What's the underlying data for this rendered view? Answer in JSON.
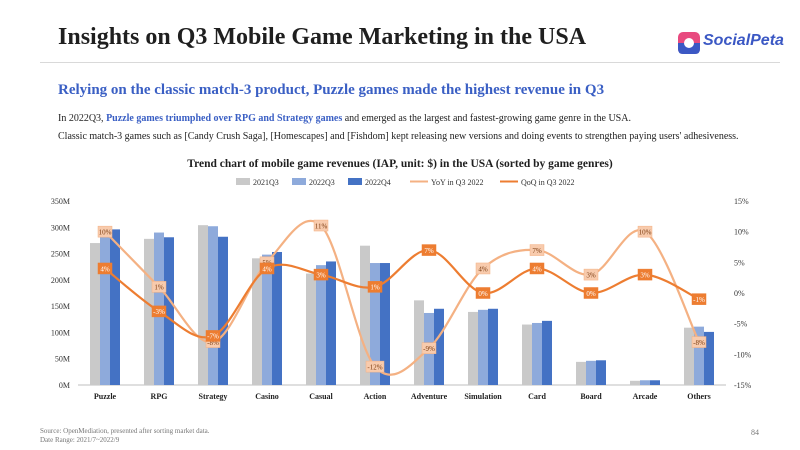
{
  "header": {
    "title": "Insights on Q3 Mobile Game Marketing in the USA",
    "logo_text": "SocialPeta"
  },
  "headline": "Relying on the classic match-3 product, Puzzle games made the highest revenue in Q3",
  "paragraph1": {
    "before": "In 2022Q3, ",
    "highlight": "Puzzle games triumphed over RPG and Strategy games",
    "after": " and emerged as the largest and fastest-growing game genre in the USA."
  },
  "paragraph2": "Classic match-3 games such as [Candy Crush Saga], [Homescapes] and [Fishdom] kept releasing new versions and doing events to strengthen paying users' adhesiveness.",
  "footer": {
    "source": "Source: OpenMediation, presented after sorting market data.",
    "date_range": "Date Range: 2021/7~2022/9",
    "page_number": "84"
  },
  "colors": {
    "bar_2021q3": "#c9c9c9",
    "bar_2022q3": "#8eaadb",
    "bar_2022q4": "#4472c4",
    "yoy_line": "#f4b183",
    "qoq_line": "#ed7d31",
    "yoy_label_bg": "#f8cbad",
    "qoq_label_bg": "#ed7d31"
  },
  "chart_data": {
    "type": "bar",
    "title": "Trend chart of mobile game revenues (IAP, unit: $) in the USA (sorted by game genres)",
    "categories": [
      "Puzzle",
      "RPG",
      "Strategy",
      "Casino",
      "Casual",
      "Action",
      "Adventure",
      "Simulation",
      "Card",
      "Board",
      "Arcade",
      "Others"
    ],
    "series": [
      {
        "name": "2021Q3",
        "type": "bar",
        "axis": "left",
        "values": [
          270,
          278,
          304,
          241,
          212,
          265,
          161,
          139,
          115,
          44,
          8,
          109
        ]
      },
      {
        "name": "2022Q3",
        "type": "bar",
        "axis": "left",
        "values": [
          285,
          290,
          302,
          248,
          228,
          232,
          137,
          143,
          118,
          46,
          9,
          111
        ]
      },
      {
        "name": "2022Q4",
        "type": "bar",
        "axis": "left",
        "values": [
          296,
          281,
          282,
          253,
          235,
          232,
          145,
          145,
          122,
          47,
          9,
          101
        ]
      },
      {
        "name": "YoY in Q3 2022",
        "type": "line",
        "axis": "right",
        "values": [
          10,
          1,
          -8,
          5,
          11,
          -12,
          -9,
          4,
          7,
          3,
          10,
          -8
        ],
        "labels": [
          "10%",
          "1%",
          "-8%",
          "5%",
          "11%",
          "-12%",
          "-9%",
          "4%",
          "7%",
          "3%",
          "10%",
          "-8%"
        ]
      },
      {
        "name": "QoQ in Q3 2022",
        "type": "line",
        "axis": "right",
        "values": [
          4,
          -3,
          -7,
          4,
          3,
          1,
          7,
          0,
          4,
          0,
          3,
          -1
        ],
        "labels": [
          "4%",
          "-3%",
          "-7%",
          "4%",
          "3%",
          "1%",
          "7%",
          "0%",
          "4%",
          "0%",
          "3%",
          "-1%"
        ]
      }
    ],
    "left_axis": {
      "min": 0,
      "max": 350,
      "ticks": [
        0,
        50,
        100,
        150,
        200,
        250,
        300,
        350
      ],
      "tick_labels": [
        "0M",
        "50M",
        "100M",
        "150M",
        "200M",
        "250M",
        "300M",
        "350M"
      ]
    },
    "right_axis": {
      "min": -15,
      "max": 15,
      "ticks": [
        -15,
        -10,
        -5,
        0,
        5,
        10,
        15
      ],
      "tick_labels": [
        "-15%",
        "-10%",
        "-5%",
        "0%",
        "5%",
        "10%",
        "15%"
      ]
    },
    "legend_position": "top",
    "grid": false
  }
}
